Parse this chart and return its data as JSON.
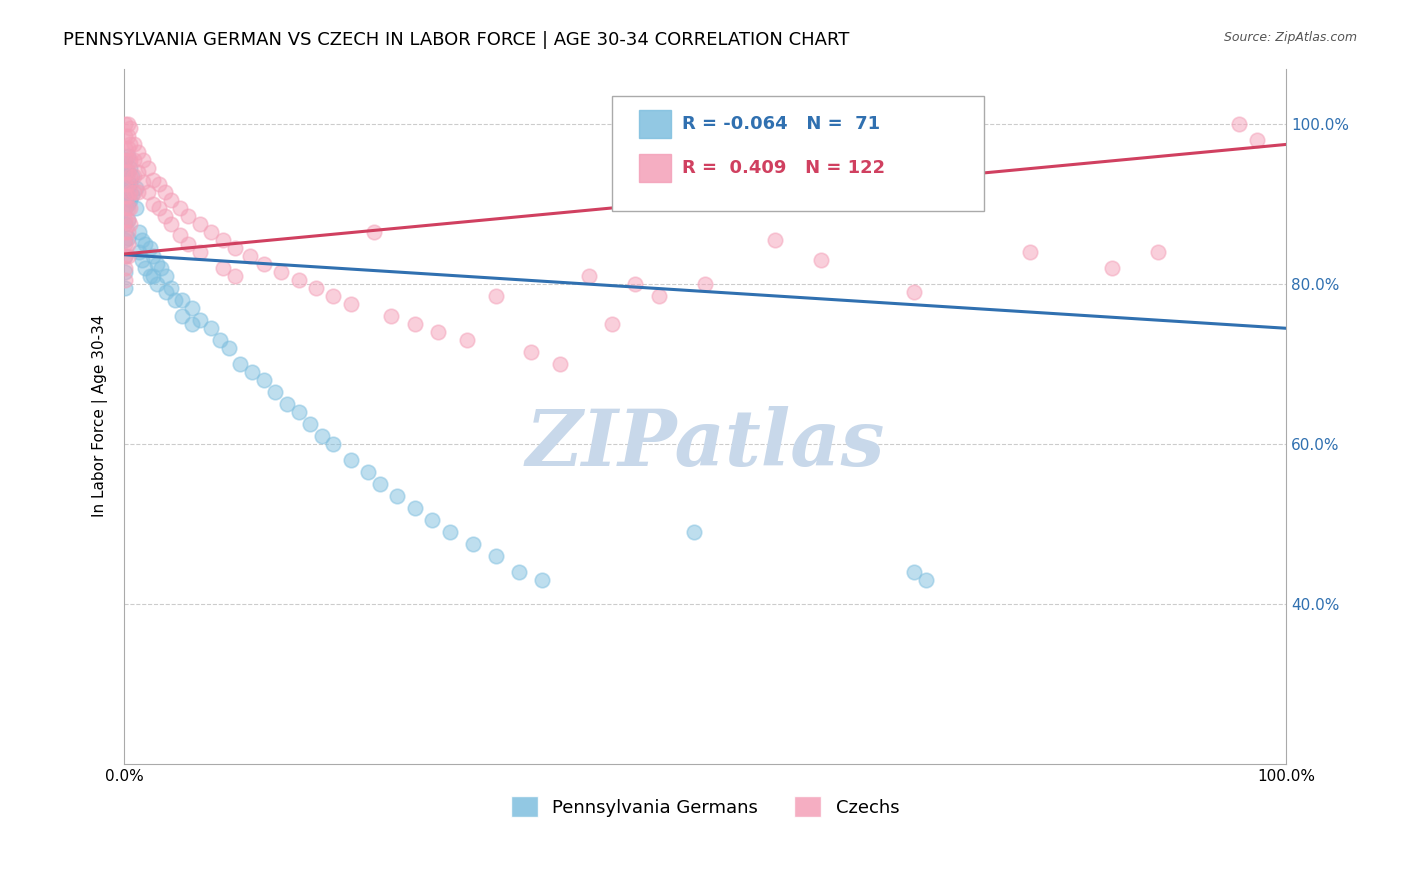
{
  "title": "PENNSYLVANIA GERMAN VS CZECH IN LABOR FORCE | AGE 30-34 CORRELATION CHART",
  "source_text": "Source: ZipAtlas.com",
  "ylabel": "In Labor Force | Age 30-34",
  "xlim": [
    0.0,
    1.0
  ],
  "ylim": [
    0.2,
    1.07
  ],
  "y_tick_positions": [
    0.4,
    0.6,
    0.8,
    1.0
  ],
  "r_penn": -0.064,
  "n_penn": 71,
  "r_czech": 0.409,
  "n_czech": 122,
  "blue_color": "#7fbfdf",
  "pink_color": "#f4a0b8",
  "blue_line_color": "#3070b0",
  "pink_line_color": "#d04060",
  "watermark_text": "ZIPatlas",
  "watermark_color": "#c8d8ea",
  "title_fontsize": 13,
  "axis_label_fontsize": 11,
  "tick_fontsize": 11,
  "legend_fontsize": 13,
  "blue_scatter": [
    [
      0.001,
      0.955
    ],
    [
      0.001,
      0.935
    ],
    [
      0.001,
      0.915
    ],
    [
      0.001,
      0.895
    ],
    [
      0.001,
      0.875
    ],
    [
      0.001,
      0.855
    ],
    [
      0.001,
      0.835
    ],
    [
      0.001,
      0.815
    ],
    [
      0.001,
      0.795
    ],
    [
      0.003,
      0.96
    ],
    [
      0.003,
      0.94
    ],
    [
      0.003,
      0.92
    ],
    [
      0.003,
      0.9
    ],
    [
      0.003,
      0.88
    ],
    [
      0.003,
      0.858
    ],
    [
      0.005,
      0.945
    ],
    [
      0.005,
      0.925
    ],
    [
      0.005,
      0.905
    ],
    [
      0.007,
      0.935
    ],
    [
      0.007,
      0.912
    ],
    [
      0.01,
      0.92
    ],
    [
      0.01,
      0.895
    ],
    [
      0.013,
      0.865
    ],
    [
      0.013,
      0.84
    ],
    [
      0.015,
      0.855
    ],
    [
      0.015,
      0.83
    ],
    [
      0.018,
      0.85
    ],
    [
      0.018,
      0.82
    ],
    [
      0.022,
      0.845
    ],
    [
      0.022,
      0.81
    ],
    [
      0.025,
      0.835
    ],
    [
      0.025,
      0.81
    ],
    [
      0.028,
      0.825
    ],
    [
      0.028,
      0.8
    ],
    [
      0.032,
      0.82
    ],
    [
      0.036,
      0.81
    ],
    [
      0.036,
      0.79
    ],
    [
      0.04,
      0.795
    ],
    [
      0.044,
      0.78
    ],
    [
      0.05,
      0.78
    ],
    [
      0.05,
      0.76
    ],
    [
      0.058,
      0.77
    ],
    [
      0.058,
      0.75
    ],
    [
      0.065,
      0.755
    ],
    [
      0.075,
      0.745
    ],
    [
      0.082,
      0.73
    ],
    [
      0.09,
      0.72
    ],
    [
      0.1,
      0.7
    ],
    [
      0.11,
      0.69
    ],
    [
      0.12,
      0.68
    ],
    [
      0.13,
      0.665
    ],
    [
      0.14,
      0.65
    ],
    [
      0.15,
      0.64
    ],
    [
      0.16,
      0.625
    ],
    [
      0.17,
      0.61
    ],
    [
      0.18,
      0.6
    ],
    [
      0.195,
      0.58
    ],
    [
      0.21,
      0.565
    ],
    [
      0.22,
      0.55
    ],
    [
      0.235,
      0.535
    ],
    [
      0.25,
      0.52
    ],
    [
      0.265,
      0.505
    ],
    [
      0.28,
      0.49
    ],
    [
      0.3,
      0.475
    ],
    [
      0.32,
      0.46
    ],
    [
      0.34,
      0.44
    ],
    [
      0.36,
      0.43
    ],
    [
      0.49,
      0.49
    ],
    [
      0.68,
      0.44
    ],
    [
      0.69,
      0.43
    ]
  ],
  "pink_scatter": [
    [
      0.001,
      1.0
    ],
    [
      0.001,
      0.985
    ],
    [
      0.001,
      0.97
    ],
    [
      0.001,
      0.955
    ],
    [
      0.001,
      0.94
    ],
    [
      0.001,
      0.925
    ],
    [
      0.001,
      0.91
    ],
    [
      0.001,
      0.895
    ],
    [
      0.001,
      0.88
    ],
    [
      0.001,
      0.865
    ],
    [
      0.001,
      0.85
    ],
    [
      0.001,
      0.835
    ],
    [
      0.001,
      0.82
    ],
    [
      0.001,
      0.805
    ],
    [
      0.003,
      1.0
    ],
    [
      0.003,
      0.985
    ],
    [
      0.003,
      0.97
    ],
    [
      0.003,
      0.955
    ],
    [
      0.003,
      0.94
    ],
    [
      0.003,
      0.925
    ],
    [
      0.003,
      0.91
    ],
    [
      0.003,
      0.895
    ],
    [
      0.003,
      0.88
    ],
    [
      0.003,
      0.865
    ],
    [
      0.003,
      0.85
    ],
    [
      0.003,
      0.835
    ],
    [
      0.005,
      0.995
    ],
    [
      0.005,
      0.975
    ],
    [
      0.005,
      0.955
    ],
    [
      0.005,
      0.935
    ],
    [
      0.005,
      0.915
    ],
    [
      0.005,
      0.895
    ],
    [
      0.005,
      0.875
    ],
    [
      0.008,
      0.975
    ],
    [
      0.008,
      0.955
    ],
    [
      0.008,
      0.935
    ],
    [
      0.008,
      0.915
    ],
    [
      0.012,
      0.965
    ],
    [
      0.012,
      0.94
    ],
    [
      0.012,
      0.915
    ],
    [
      0.016,
      0.955
    ],
    [
      0.016,
      0.928
    ],
    [
      0.02,
      0.945
    ],
    [
      0.02,
      0.915
    ],
    [
      0.025,
      0.93
    ],
    [
      0.025,
      0.9
    ],
    [
      0.03,
      0.925
    ],
    [
      0.03,
      0.895
    ],
    [
      0.035,
      0.915
    ],
    [
      0.035,
      0.885
    ],
    [
      0.04,
      0.905
    ],
    [
      0.04,
      0.875
    ],
    [
      0.048,
      0.895
    ],
    [
      0.048,
      0.862
    ],
    [
      0.055,
      0.885
    ],
    [
      0.055,
      0.85
    ],
    [
      0.065,
      0.875
    ],
    [
      0.065,
      0.84
    ],
    [
      0.075,
      0.865
    ],
    [
      0.085,
      0.855
    ],
    [
      0.085,
      0.82
    ],
    [
      0.095,
      0.845
    ],
    [
      0.095,
      0.81
    ],
    [
      0.108,
      0.835
    ],
    [
      0.12,
      0.825
    ],
    [
      0.135,
      0.815
    ],
    [
      0.15,
      0.805
    ],
    [
      0.165,
      0.795
    ],
    [
      0.18,
      0.785
    ],
    [
      0.195,
      0.775
    ],
    [
      0.215,
      0.865
    ],
    [
      0.23,
      0.76
    ],
    [
      0.25,
      0.75
    ],
    [
      0.27,
      0.74
    ],
    [
      0.295,
      0.73
    ],
    [
      0.32,
      0.785
    ],
    [
      0.35,
      0.715
    ],
    [
      0.375,
      0.7
    ],
    [
      0.4,
      0.81
    ],
    [
      0.42,
      0.75
    ],
    [
      0.44,
      0.8
    ],
    [
      0.46,
      0.785
    ],
    [
      0.5,
      0.8
    ],
    [
      0.56,
      0.855
    ],
    [
      0.6,
      0.83
    ],
    [
      0.68,
      0.79
    ],
    [
      0.78,
      0.84
    ],
    [
      0.85,
      0.82
    ],
    [
      0.89,
      0.84
    ],
    [
      0.96,
      1.0
    ],
    [
      0.975,
      0.98
    ]
  ]
}
